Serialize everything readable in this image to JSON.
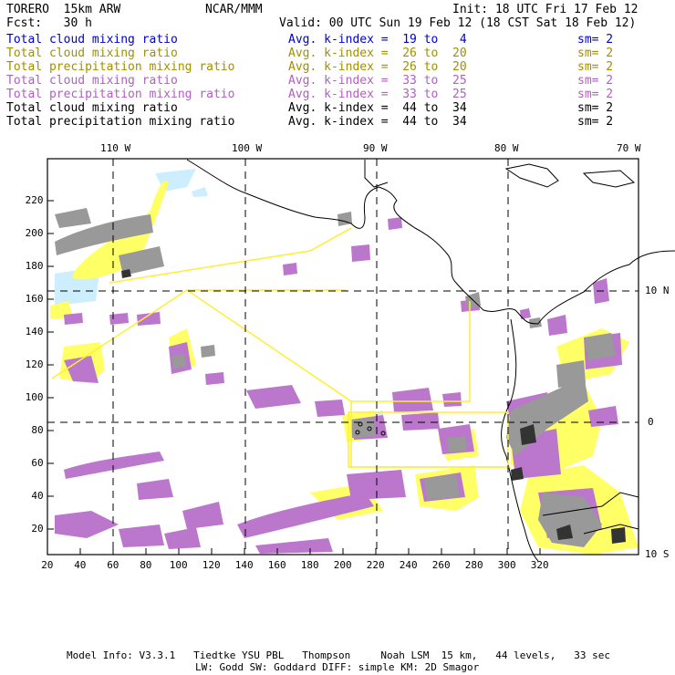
{
  "header": {
    "model": "TORERO  15km ARW",
    "center": "NCAR/MMM",
    "init": "Init: 18 UTC Fri 17 Feb 12",
    "fcst": "Fcst:   30 h",
    "valid": "Valid: 00 UTC Sun 19 Feb 12 (18 CST Sat 18 Feb 12)"
  },
  "legend": [
    {
      "field": "Total cloud mixing ratio",
      "kindex": "Avg. k-index =  19 to   4",
      "sm": "sm= 2",
      "color": "#0000cc"
    },
    {
      "field": "Total cloud mixing ratio",
      "kindex": "Avg. k-index =  26 to  20",
      "sm": "sm= 2",
      "color": "#a09000"
    },
    {
      "field": "Total precipitation mixing ratio",
      "kindex": "Avg. k-index =  26 to  20",
      "sm": "sm= 2",
      "color": "#a09000"
    },
    {
      "field": "Total cloud mixing ratio",
      "kindex": "Avg. k-index =  33 to  25",
      "sm": "sm= 2",
      "color": "#b060c0"
    },
    {
      "field": "Total precipitation mixing ratio",
      "kindex": "Avg. k-index =  33 to  25",
      "sm": "sm= 2",
      "color": "#b060c0"
    },
    {
      "field": "Total cloud mixing ratio",
      "kindex": "Avg. k-index =  44 to  34",
      "sm": "sm= 2",
      "color": "#000000"
    },
    {
      "field": "Total precipitation mixing ratio",
      "kindex": "Avg. k-index =  44 to  34",
      "sm": "sm= 2",
      "color": "#000000"
    }
  ],
  "lon_labels": [
    "110 W",
    "100 W",
    "90 W",
    "80 W",
    "70 W"
  ],
  "lat_labels": [
    "10 N",
    "0",
    "10 S"
  ],
  "x_ticks": [
    "20",
    "40",
    "60",
    "80",
    "100",
    "120",
    "140",
    "160",
    "180",
    "200",
    "220",
    "240",
    "260",
    "280",
    "300",
    "320"
  ],
  "y_ticks": [
    "220",
    "200",
    "180",
    "160",
    "140",
    "120",
    "100",
    "80",
    "60",
    "40",
    "20"
  ],
  "footer": {
    "line1": "Model Info: V3.3.1   Tiedtke YSU PBL   Thompson     Noah LSM  15 km,   44 levels,   33 sec",
    "line2": "LW: Godd SW: Goddard DIFF: simple KM: 2D Smagor"
  },
  "colors": {
    "cloud_light": "#cceeff",
    "cloud_yellow": "#ffff66",
    "cloud_purple": "#bb77cc",
    "cloud_gray": "#999999",
    "cloud_dark": "#333333",
    "domain_lines": "#ffee33"
  }
}
